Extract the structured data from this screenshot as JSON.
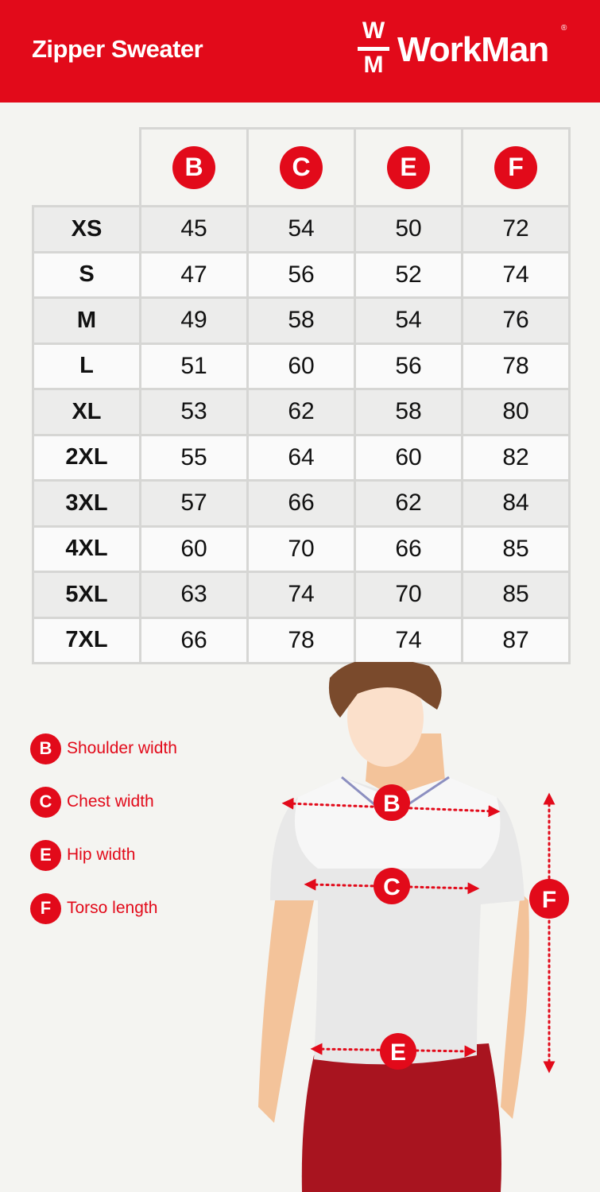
{
  "header": {
    "title": "Zipper Sweater",
    "brand": "WorkMan",
    "logo_mark": [
      "W",
      "M"
    ],
    "registered": "®"
  },
  "colors": {
    "accent": "#e20a1a",
    "background": "#f4f4f1",
    "grid": "#d6d6d4"
  },
  "table": {
    "columns": [
      "B",
      "C",
      "E",
      "F"
    ],
    "rows": [
      {
        "size": "XS",
        "values": [
          "45",
          "54",
          "50",
          "72"
        ]
      },
      {
        "size": "S",
        "values": [
          "47",
          "56",
          "52",
          "74"
        ]
      },
      {
        "size": "M",
        "values": [
          "49",
          "58",
          "54",
          "76"
        ]
      },
      {
        "size": "L",
        "values": [
          "51",
          "60",
          "56",
          "78"
        ]
      },
      {
        "size": "XL",
        "values": [
          "53",
          "62",
          "58",
          "80"
        ]
      },
      {
        "size": "2XL",
        "values": [
          "55",
          "64",
          "60",
          "82"
        ]
      },
      {
        "size": "3XL",
        "values": [
          "57",
          "66",
          "62",
          "84"
        ]
      },
      {
        "size": "4XL",
        "values": [
          "60",
          "70",
          "66",
          "85"
        ]
      },
      {
        "size": "5XL",
        "values": [
          "63",
          "74",
          "70",
          "85"
        ]
      },
      {
        "size": "7XL",
        "values": [
          "66",
          "78",
          "74",
          "87"
        ]
      }
    ]
  },
  "legend": [
    {
      "key": "B",
      "label": "Shoulder width"
    },
    {
      "key": "C",
      "label": "Chest width"
    },
    {
      "key": "E",
      "label": "Hip width"
    },
    {
      "key": "F",
      "label": "Torso length"
    }
  ],
  "figure_markers": [
    "B",
    "C",
    "E",
    "F"
  ]
}
